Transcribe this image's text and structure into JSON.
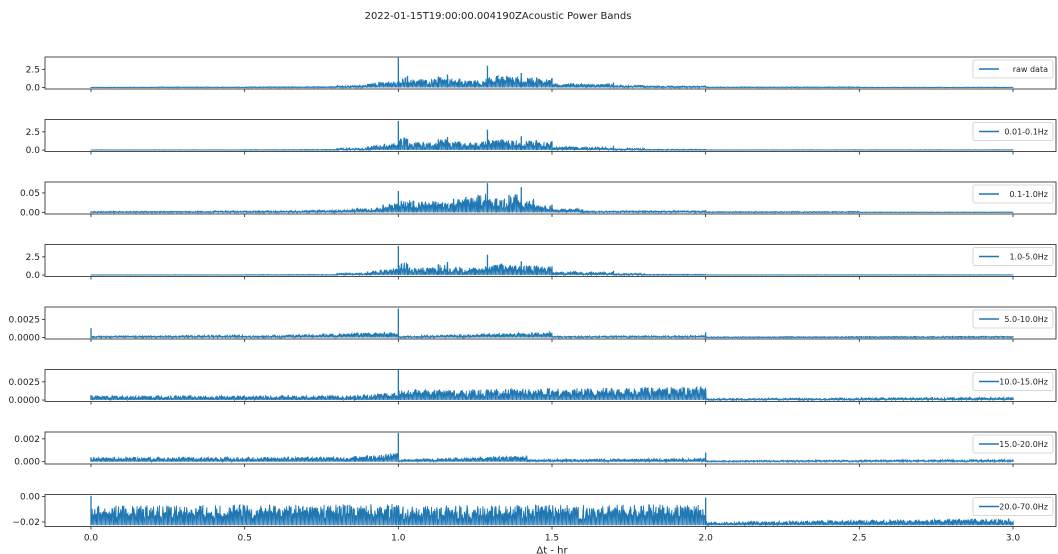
{
  "chart_data": {
    "type": "line",
    "title": "2022-01-15T19:00:00.004190ZAcoustic Power Bands",
    "xlabel": "Δt - hr",
    "xlim": [
      0.0,
      3.0
    ],
    "xticks": [
      0.0,
      0.5,
      1.0,
      1.5,
      2.0,
      2.5,
      3.0
    ],
    "xtick_labels": [
      "0.0",
      "0.5",
      "1.0",
      "1.5",
      "2.0",
      "2.5",
      "3.0"
    ],
    "line_color": "#1f77b4",
    "legend_location": "right",
    "panels": [
      {
        "name": "raw data",
        "ylim": [
          -0.2,
          4.2
        ],
        "yticks": [
          0.0,
          2.5
        ],
        "ytick_labels": [
          "0.0",
          "2.5"
        ],
        "peaks": [
          [
            0.0,
            0.05
          ],
          [
            0.2,
            0.08
          ],
          [
            0.5,
            0.1
          ],
          [
            0.8,
            0.25
          ],
          [
            0.9,
            0.5
          ],
          [
            1.0,
            4.1
          ],
          [
            1.03,
            1.6
          ],
          [
            1.08,
            1.1
          ],
          [
            1.13,
            1.5
          ],
          [
            1.16,
            1.8
          ],
          [
            1.2,
            1.2
          ],
          [
            1.25,
            1.0
          ],
          [
            1.29,
            3.0
          ],
          [
            1.34,
            1.5
          ],
          [
            1.4,
            2.0
          ],
          [
            1.45,
            1.4
          ],
          [
            1.5,
            1.3
          ],
          [
            1.58,
            0.5
          ],
          [
            1.7,
            0.7
          ],
          [
            1.8,
            0.3
          ],
          [
            2.0,
            0.2
          ],
          [
            2.5,
            0.08
          ],
          [
            3.0,
            0.05
          ]
        ]
      },
      {
        "name": "0.01-0.1Hz",
        "ylim": [
          -0.2,
          4.2
        ],
        "yticks": [
          0.0,
          2.5
        ],
        "ytick_labels": [
          "0.0",
          "2.5"
        ],
        "peaks": [
          [
            0.0,
            0.03
          ],
          [
            0.5,
            0.05
          ],
          [
            0.8,
            0.25
          ],
          [
            0.9,
            0.5
          ],
          [
            1.0,
            4.0
          ],
          [
            1.03,
            1.5
          ],
          [
            1.08,
            1.0
          ],
          [
            1.13,
            1.5
          ],
          [
            1.16,
            1.8
          ],
          [
            1.2,
            1.1
          ],
          [
            1.25,
            1.0
          ],
          [
            1.29,
            2.8
          ],
          [
            1.34,
            1.4
          ],
          [
            1.4,
            1.9
          ],
          [
            1.45,
            1.3
          ],
          [
            1.5,
            1.2
          ],
          [
            1.58,
            0.4
          ],
          [
            1.7,
            0.6
          ],
          [
            1.8,
            0.2
          ],
          [
            2.0,
            0.1
          ],
          [
            3.0,
            0.03
          ]
        ]
      },
      {
        "name": "0.1-1.0Hz",
        "ylim": [
          -0.004,
          0.078
        ],
        "yticks": [
          0.0,
          0.05
        ],
        "ytick_labels": [
          "0.00",
          "0.05"
        ],
        "peaks": [
          [
            0.0,
            0.003
          ],
          [
            0.4,
            0.004
          ],
          [
            0.7,
            0.006
          ],
          [
            0.85,
            0.01
          ],
          [
            0.95,
            0.02
          ],
          [
            1.0,
            0.055
          ],
          [
            1.05,
            0.03
          ],
          [
            1.12,
            0.028
          ],
          [
            1.18,
            0.035
          ],
          [
            1.22,
            0.04
          ],
          [
            1.26,
            0.045
          ],
          [
            1.29,
            0.075
          ],
          [
            1.32,
            0.035
          ],
          [
            1.36,
            0.045
          ],
          [
            1.4,
            0.065
          ],
          [
            1.44,
            0.03
          ],
          [
            1.5,
            0.02
          ],
          [
            1.6,
            0.008
          ],
          [
            1.8,
            0.004
          ],
          [
            2.0,
            0.006
          ],
          [
            2.5,
            0.002
          ],
          [
            3.0,
            0.001
          ]
        ]
      },
      {
        "name": "1.0-5.0Hz",
        "ylim": [
          -0.2,
          4.2
        ],
        "yticks": [
          0.0,
          2.5
        ],
        "ytick_labels": [
          "0.0",
          "2.5"
        ],
        "peaks": [
          [
            0.0,
            0.03
          ],
          [
            0.5,
            0.05
          ],
          [
            0.8,
            0.25
          ],
          [
            0.9,
            0.5
          ],
          [
            1.0,
            4.0
          ],
          [
            1.03,
            1.5
          ],
          [
            1.08,
            1.0
          ],
          [
            1.13,
            1.5
          ],
          [
            1.16,
            1.8
          ],
          [
            1.2,
            1.1
          ],
          [
            1.25,
            1.0
          ],
          [
            1.29,
            2.8
          ],
          [
            1.34,
            1.4
          ],
          [
            1.4,
            1.9
          ],
          [
            1.45,
            1.3
          ],
          [
            1.5,
            1.2
          ],
          [
            1.58,
            0.4
          ],
          [
            1.7,
            0.6
          ],
          [
            1.8,
            0.2
          ],
          [
            2.0,
            0.1
          ],
          [
            3.0,
            0.03
          ]
        ]
      },
      {
        "name": "5.0-10.0Hz",
        "ylim": [
          -0.0002,
          0.0042
        ],
        "yticks": [
          0.0,
          0.0025
        ],
        "ytick_labels": [
          "0.0000",
          "0.0025"
        ],
        "peaks": [
          [
            0.0,
            0.0013
          ],
          [
            0.5,
            0.0002
          ],
          [
            1.0,
            0.004
          ],
          [
            1.5,
            0.0002
          ],
          [
            2.0,
            0.0007
          ],
          [
            3.0,
            0.0001
          ]
        ]
      },
      {
        "name": "10.0-15.0Hz",
        "ylim": [
          -0.0002,
          0.0042
        ],
        "yticks": [
          0.0,
          0.0025
        ],
        "ytick_labels": [
          "0.0000",
          "0.0025"
        ],
        "peaks": [
          [
            0.0,
            0.0007
          ],
          [
            0.86,
            0.0006
          ],
          [
            1.0,
            0.0042
          ],
          [
            2.0,
            0.0014
          ],
          [
            3.0,
            0.0002
          ]
        ]
      },
      {
        "name": "15.0-20.0Hz",
        "ylim": [
          -0.0002,
          0.0026
        ],
        "yticks": [
          0.0,
          0.002
        ],
        "ytick_labels": [
          "0.000",
          "0.002"
        ],
        "peaks": [
          [
            0.0,
            0.0004
          ],
          [
            0.86,
            0.0005
          ],
          [
            1.0,
            0.0025
          ],
          [
            1.42,
            0.0002
          ],
          [
            2.0,
            0.0008
          ],
          [
            3.0,
            0.0001
          ]
        ]
      },
      {
        "name": "20.0-70.0Hz",
        "ylim": [
          -0.0235,
          0.0015
        ],
        "yticks": [
          0.0,
          -0.02
        ],
        "ytick_labels": [
          "0.00",
          "−0.02"
        ],
        "baseline": -0.0225,
        "peaks": [
          [
            0.0,
            0.0005
          ],
          [
            1.0,
            -0.007
          ],
          [
            2.0,
            -0.001
          ],
          [
            3.0,
            -0.02
          ]
        ]
      }
    ]
  }
}
